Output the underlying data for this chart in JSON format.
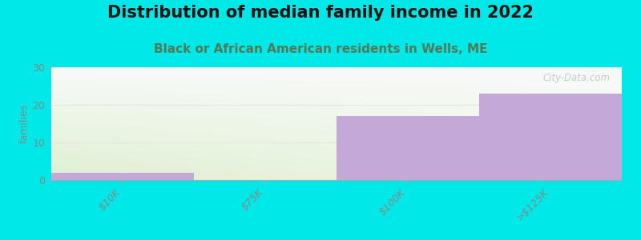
{
  "title": "Distribution of median family income in 2022",
  "subtitle": "Black or African American residents in Wells, ME",
  "categories": [
    "$10K",
    "$75K",
    "$100K",
    ">$125K"
  ],
  "values": [
    2,
    0,
    17,
    23
  ],
  "bar_color": "#c4a8d8",
  "bar_edgecolor": "#c4a8d8",
  "background_color": "#00e8e8",
  "chart_bg_color_topleft": "#d8edc8",
  "chart_bg_color_bottomright": "#f8faf8",
  "ylabel": "families",
  "ylim": [
    0,
    30
  ],
  "yticks": [
    0,
    10,
    20,
    30
  ],
  "grid_color": "#e8f0e8",
  "title_fontsize": 15,
  "subtitle_fontsize": 11,
  "watermark": "City-Data.com",
  "title_color": "#111111",
  "subtitle_color": "#557755",
  "tick_label_color": "#888888",
  "ylabel_color": "#888888"
}
